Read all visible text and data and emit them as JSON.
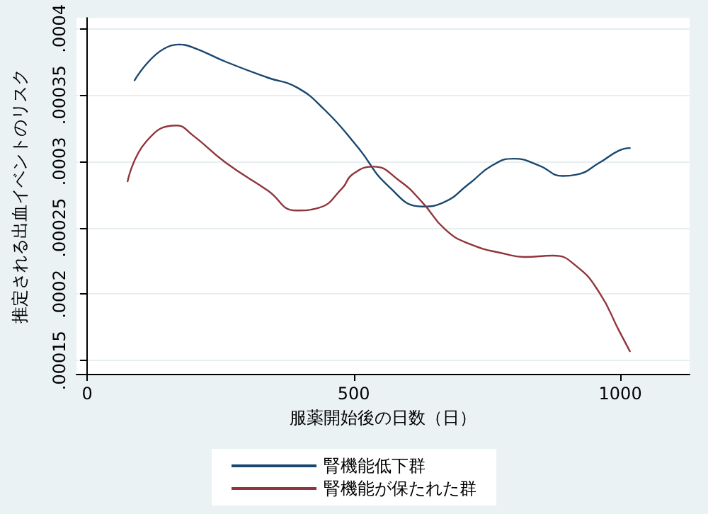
{
  "chart_data": {
    "type": "line",
    "xlabel": "服薬開始後の日数（日）",
    "ylabel": "推定される出血イベントのリスク",
    "xlim": [
      -20,
      1130
    ],
    "xticks": [
      0,
      500,
      1000
    ],
    "ylim": [
      0.00014,
      0.000408
    ],
    "yticks": [
      {
        "value": 0.00015,
        "label": ".00015"
      },
      {
        "value": 0.0002,
        "label": ".0002"
      },
      {
        "value": 0.00025,
        "label": ".00025"
      },
      {
        "value": 0.0003,
        "label": ".0003"
      },
      {
        "value": 0.00035,
        "label": ".00035"
      },
      {
        "value": 0.0004,
        "label": ".0004"
      }
    ],
    "grid": "y",
    "legend": "bottom",
    "marker": "none",
    "line_style": "solid",
    "series": [
      {
        "name": "腎機能低下群",
        "color": "#1a476f",
        "x": [
          89,
          171,
          197,
          260,
          339,
          392,
          445,
          505,
          566,
          629,
          668,
          716,
          760,
          800,
          847,
          892,
          918,
          961,
          997,
          1018
        ],
        "values": [
          0.000361,
          0.000388,
          0.000386,
          0.000375,
          0.000363,
          0.000356,
          0.000339,
          0.000312,
          0.000281,
          0.000266,
          0.000269,
          0.000283,
          0.000297,
          0.000302,
          0.000297,
          0.000289,
          0.00029,
          0.000299,
          0.000308,
          0.00031
        ]
      },
      {
        "name": "腎機能が保たれた群",
        "color": "#90353b",
        "x": [
          76,
          111,
          168,
          197,
          260,
          339,
          392,
          434,
          479,
          497,
          537,
          584,
          629,
          671,
          716,
          787,
          821,
          874,
          918,
          961,
          997,
          1018
        ],
        "values": [
          0.000285,
          0.000315,
          0.000327,
          0.00032,
          0.000299,
          0.000278,
          0.000263,
          0.000265,
          0.00028,
          0.00029,
          0.000296,
          0.000286,
          0.000269,
          0.000249,
          0.000238,
          0.00023,
          0.000228,
          0.000229,
          0.000221,
          0.000201,
          0.000173,
          0.000157
        ]
      }
    ]
  }
}
